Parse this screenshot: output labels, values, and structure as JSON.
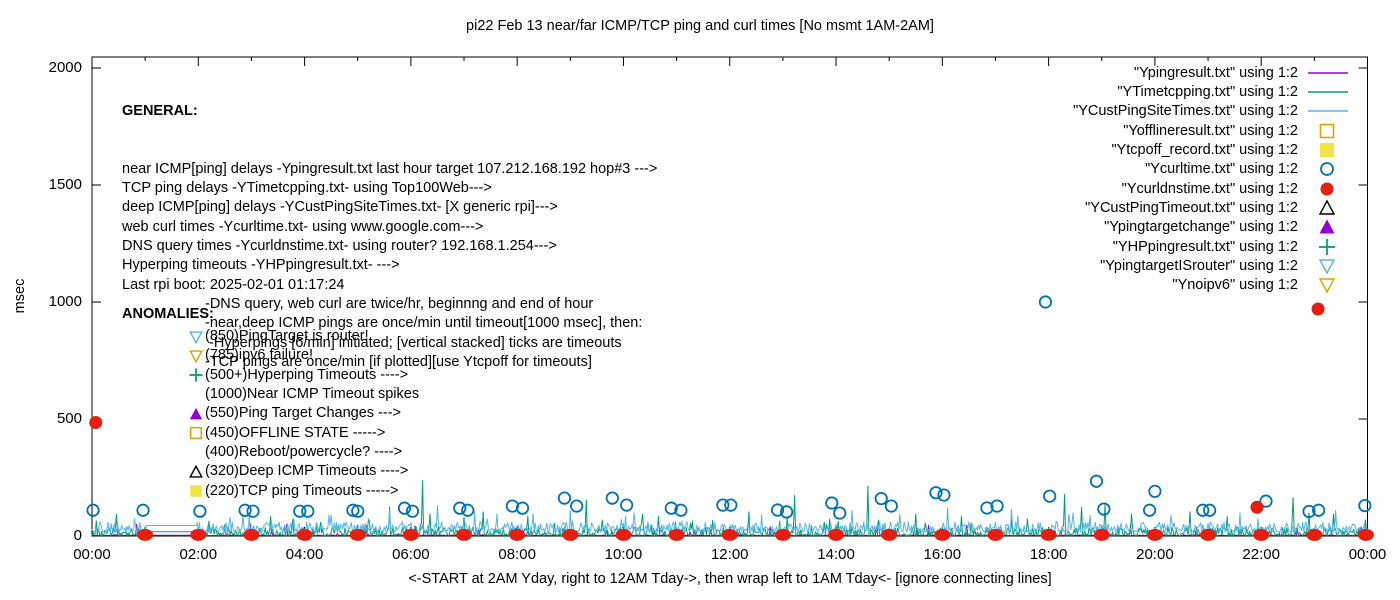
{
  "title": "pi22 Feb 13  near/far ICMP/TCP ping and curl times [No msmt 1AM-2AM]",
  "axes": {
    "y_label": "msec",
    "x_label": "<-START at 2AM Yday, right to 12AM Tday->, then wrap left to 1AM Tday<- [ignore connecting lines]",
    "y_ticks": [
      0,
      500,
      1000,
      1500,
      2000
    ],
    "y_range": [
      0,
      2000
    ],
    "x_tick_labels": [
      "00:00",
      "02:00",
      "04:00",
      "06:00",
      "08:00",
      "10:00",
      "12:00",
      "14:00",
      "16:00",
      "18:00",
      "20:00",
      "22:00",
      "00:00"
    ],
    "x_range_hours": [
      0,
      24
    ]
  },
  "general": {
    "heading": "GENERAL:",
    "lines": [
      "near ICMP[ping] delays -Ypingresult.txt last hour target 107.212.168.192 hop#3 --->",
      "TCP ping delays -YTimetcpping.txt- using Top100Web--->",
      "deep ICMP[ping] delays -YCustPingSiteTimes.txt- [X generic rpi]--->",
      "web curl times -Ycurltime.txt- using www.google.com--->",
      "DNS query times -Ycurldnstime.txt- using router? 192.168.1.254--->",
      "Hyperping timeouts -YHPpingresult.txt- --->",
      "Last rpi boot: 2025-02-01 01:17:24"
    ],
    "notes": [
      "-DNS query, web curl are twice/hr, beginnng and end of hour",
      "-near,deep ICMP pings are once/min until timeout[1000 msec], then:",
      " -Hyperpings [6/min] initiated; [vertical stacked] ticks are timeouts",
      "-TCP pings are once/min [if plotted][use Ytcpoff for timeouts]"
    ]
  },
  "anomalies": {
    "heading": "ANOMALIES:",
    "items": [
      {
        "marker": "triangle-down-open",
        "color": "#56B4E9",
        "label": "(850)PingTarget is router!"
      },
      {
        "marker": "triangle-down-open",
        "color": "#E69F00",
        "label": "(785)ipv6 failure!"
      },
      {
        "marker": "plus",
        "color": "#009E73",
        "label": "(500+)Hyperping Timeouts ---->"
      },
      {
        "marker": "none",
        "color": "#000000",
        "label": "(1000)Near ICMP Timeout spikes"
      },
      {
        "marker": "triangle-up-filled",
        "color": "#9400D3",
        "label": "(550)Ping Target Changes --->"
      },
      {
        "marker": "square-open",
        "color": "#E69F00",
        "label": "(450)OFFLINE STATE ----->"
      },
      {
        "marker": "none",
        "color": "#000000",
        "label": "(400)Reboot/powercycle? ---->"
      },
      {
        "marker": "triangle-up-open",
        "color": "#000000",
        "label": "(320)Deep ICMP Timeouts ---->"
      },
      {
        "marker": "square-filled",
        "color": "#F0E442",
        "label": "(220)TCP ping Timeouts ----->"
      }
    ]
  },
  "legend": {
    "entries": [
      {
        "label": "\"Ypingresult.txt\" using 1:2",
        "marker": "line",
        "color": "#9400D3"
      },
      {
        "label": "\"YTimetcpping.txt\" using 1:2",
        "marker": "line",
        "color": "#009E73"
      },
      {
        "label": "\"YCustPingSiteTimes.txt\" using 1:2",
        "marker": "line",
        "color": "#56B4E9"
      },
      {
        "label": "\"Yofflineresult.txt\" using 1:2",
        "marker": "square-open",
        "color": "#E69F00"
      },
      {
        "label": "\"Ytcpoff_record.txt\" using 1:2",
        "marker": "square-filled",
        "color": "#F0E442"
      },
      {
        "label": "\"Ycurltime.txt\" using 1:2",
        "marker": "circle-open",
        "color": "#0072B2"
      },
      {
        "label": "\"Ycurldnstime.txt\" using 1:2",
        "marker": "circle-filled",
        "color": "#E51E10"
      },
      {
        "label": "\"YCustPingTimeout.txt\" using 1:2",
        "marker": "triangle-up-open",
        "color": "#000000"
      },
      {
        "label": "\"Ypingtargetchange\" using 1:2",
        "marker": "triangle-up-filled",
        "color": "#9400D3"
      },
      {
        "label": "\"YHPpingresult.txt\" using 1:2",
        "marker": "plus",
        "color": "#009E73"
      },
      {
        "label": "\"YpingtargetISrouter\" using 1:2",
        "marker": "triangle-down-open",
        "color": "#56B4E9"
      },
      {
        "label": "\"Ynoipv6\" using 1:2",
        "marker": "triangle-down-open",
        "color": "#E69F00"
      }
    ]
  },
  "chart_data": {
    "type": "line",
    "title": "pi22 Feb 13  near/far ICMP/TCP ping and curl times [No msmt 1AM-2AM]",
    "xlabel": "<-START at 2AM Yday, right to 12AM Tday->, then wrap left to 1AM Tday<- [ignore connecting lines]",
    "ylabel": "msec",
    "ylim": [
      0,
      2000
    ],
    "x_hours": [
      0,
      24
    ],
    "grid": false,
    "legend_position": "top-right",
    "no_measurement_gap_hours": [
      1.03,
      1.97
    ],
    "series": [
      {
        "name": "Ypingresult.txt",
        "style": "noise-line",
        "color": "#9400D3",
        "seed": 11,
        "base": [
          2,
          5
        ],
        "gap_value": 3,
        "spikes": []
      },
      {
        "name": "YTimetcpping.txt",
        "style": "noise-line",
        "color": "#009E73",
        "seed": 23,
        "base": [
          2,
          38
        ],
        "gap_value": 18,
        "spikes": [
          [
            0.45,
            95
          ],
          [
            1.0,
            40
          ],
          [
            2.2,
            65
          ],
          [
            2.5,
            50
          ],
          [
            3.35,
            85
          ],
          [
            4.3,
            60
          ],
          [
            5.2,
            70
          ],
          [
            5.6,
            125
          ],
          [
            6.22,
            238
          ],
          [
            6.35,
            95
          ],
          [
            7.0,
            80
          ],
          [
            7.35,
            105
          ],
          [
            8.2,
            85
          ],
          [
            9.3,
            155
          ],
          [
            9.6,
            70
          ],
          [
            10.35,
            95
          ],
          [
            10.65,
            85
          ],
          [
            11.3,
            65
          ],
          [
            11.68,
            68
          ],
          [
            12.35,
            105
          ],
          [
            13.22,
            175
          ],
          [
            14.6,
            215
          ],
          [
            14.8,
            70
          ],
          [
            15.5,
            95
          ],
          [
            16.35,
            85
          ],
          [
            17.3,
            75
          ],
          [
            18.3,
            180
          ],
          [
            18.62,
            125
          ],
          [
            19.05,
            135
          ],
          [
            19.55,
            95
          ],
          [
            20.65,
            105
          ],
          [
            21.35,
            85
          ],
          [
            22.6,
            165
          ],
          [
            22.9,
            100
          ],
          [
            23.35,
            95
          ]
        ]
      },
      {
        "name": "YCustPingSiteTimes.txt",
        "style": "noise-line",
        "color": "#56B4E9",
        "seed": 37,
        "base": [
          18,
          62
        ],
        "gap_value": 45,
        "spikes": [
          [
            2.6,
            80
          ],
          [
            4.5,
            90
          ],
          [
            6.5,
            132
          ],
          [
            8.3,
            95
          ],
          [
            9.0,
            110
          ],
          [
            10.2,
            100
          ],
          [
            12.6,
            90
          ],
          [
            14.3,
            110
          ],
          [
            15.2,
            95
          ],
          [
            16.1,
            120
          ],
          [
            17.3,
            115
          ],
          [
            18.45,
            100
          ],
          [
            20.3,
            90
          ],
          [
            21.6,
            100
          ],
          [
            23.4,
            110
          ]
        ]
      },
      {
        "name": "Ycurltime.txt",
        "style": "scatter",
        "marker": "circle-open",
        "color": "#0072B2",
        "points": [
          [
            0.02,
            110
          ],
          [
            0.96,
            110
          ],
          [
            2.03,
            106
          ],
          [
            2.88,
            110
          ],
          [
            3.03,
            106
          ],
          [
            3.91,
            106
          ],
          [
            4.06,
            106
          ],
          [
            4.91,
            110
          ],
          [
            5.0,
            106
          ],
          [
            5.88,
            119
          ],
          [
            6.03,
            106
          ],
          [
            6.92,
            119
          ],
          [
            7.07,
            110
          ],
          [
            7.91,
            128
          ],
          [
            8.1,
            119
          ],
          [
            8.89,
            162
          ],
          [
            9.12,
            128
          ],
          [
            9.79,
            162
          ],
          [
            10.06,
            132
          ],
          [
            10.9,
            119
          ],
          [
            11.08,
            110
          ],
          [
            11.87,
            132
          ],
          [
            12.02,
            132
          ],
          [
            12.9,
            111
          ],
          [
            13.07,
            103
          ],
          [
            13.92,
            141
          ],
          [
            14.07,
            98
          ],
          [
            14.85,
            160
          ],
          [
            15.04,
            128
          ],
          [
            15.88,
            185
          ],
          [
            16.03,
            175
          ],
          [
            16.84,
            120
          ],
          [
            17.03,
            128
          ],
          [
            17.94,
            1000
          ],
          [
            18.02,
            170
          ],
          [
            18.9,
            234
          ],
          [
            19.04,
            115
          ],
          [
            19.9,
            110
          ],
          [
            20.0,
            191
          ],
          [
            20.9,
            110
          ],
          [
            21.03,
            110
          ],
          [
            22.09,
            149
          ],
          [
            22.9,
            105
          ],
          [
            23.08,
            110
          ],
          [
            23.95,
            130
          ]
        ]
      },
      {
        "name": "Ycurldnstime.txt",
        "style": "scatter-cluster",
        "marker": "circle-filled",
        "color": "#E51E10",
        "points": [
          [
            1,
            5
          ],
          [
            2,
            5
          ],
          [
            3,
            5
          ],
          [
            4,
            5
          ],
          [
            5,
            5
          ],
          [
            6,
            5
          ],
          [
            7,
            5
          ],
          [
            8,
            5
          ],
          [
            9,
            5
          ],
          [
            10,
            5
          ],
          [
            11,
            5
          ],
          [
            12,
            5
          ],
          [
            13,
            5
          ],
          [
            14,
            5
          ],
          [
            15,
            5
          ],
          [
            16,
            5
          ],
          [
            17,
            5
          ],
          [
            18,
            5
          ],
          [
            19,
            5
          ],
          [
            20,
            5
          ],
          [
            21,
            5
          ],
          [
            22,
            5
          ],
          [
            23,
            5
          ],
          [
            23.97,
            5
          ]
        ],
        "outliers": [
          [
            0.07,
            485
          ],
          [
            21.92,
            123
          ],
          [
            23.07,
            970
          ]
        ]
      }
    ]
  }
}
